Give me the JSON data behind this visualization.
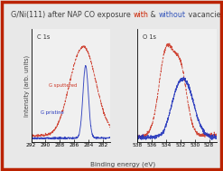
{
  "title_parts": [
    {
      "text": "G/Ni(111) after NAP CO exposure ",
      "color": "#404040"
    },
    {
      "text": "with",
      "color": "#cc2200"
    },
    {
      "text": " & ",
      "color": "#404040"
    },
    {
      "text": "without",
      "color": "#3355bb"
    },
    {
      "text": " vacancies",
      "color": "#404040"
    }
  ],
  "title_fontsize": 5.8,
  "ylabel": "Intensity (arb. units)",
  "xlabel": "Binding energy (eV)",
  "xlabel_fontsize": 5.2,
  "ylabel_fontsize": 4.8,
  "panel1_label": "C 1s",
  "panel2_label": "O 1s",
  "background_color": "#e8e8e8",
  "plot_bg_color": "#f0f0f0",
  "border_color": "#bb2200",
  "red_color": "#cc3322",
  "blue_color": "#2233bb",
  "label1_red": "G sputtered",
  "label1_blue": "G pristine",
  "c1s_xticks": [
    292,
    290,
    288,
    286,
    284,
    282
  ],
  "o1s_xticks": [
    538,
    536,
    534,
    532,
    530,
    528
  ]
}
